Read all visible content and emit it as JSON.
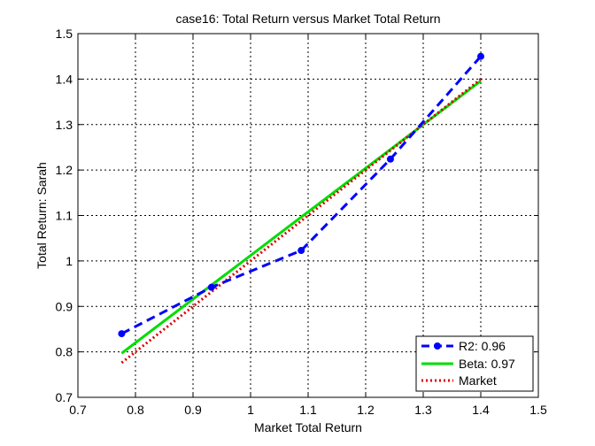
{
  "chart_data": {
    "type": "line",
    "title": "case16: Total Return versus Market Total Return",
    "xlabel": "Market Total Return",
    "ylabel": "Total Return: Sarah",
    "xlim": [
      0.7,
      1.5
    ],
    "ylim": [
      0.7,
      1.5
    ],
    "xticks": [
      "0.7",
      "0.8",
      "0.9",
      "1",
      "1.1",
      "1.2",
      "1.3",
      "1.4",
      "1.5"
    ],
    "yticks": [
      "0.7",
      "0.8",
      "0.9",
      "1",
      "1.1",
      "1.2",
      "1.3",
      "1.4",
      "1.5"
    ],
    "grid": true,
    "legend_position": "bottom-right",
    "series": [
      {
        "name": "R2: 0.96",
        "color": "#0000ff",
        "style": "dashed-markers",
        "x": [
          0.776,
          0.932,
          1.088,
          1.243,
          1.4
        ],
        "y": [
          0.84,
          0.942,
          1.023,
          1.224,
          1.45
        ]
      },
      {
        "name": "Beta: 0.97",
        "color": "#00dd00",
        "style": "solid",
        "x": [
          0.776,
          1.4
        ],
        "y": [
          0.797,
          1.396
        ]
      },
      {
        "name": "Market",
        "color": "#dd0000",
        "style": "dotted",
        "x": [
          0.776,
          1.4
        ],
        "y": [
          0.776,
          1.4
        ]
      }
    ]
  }
}
